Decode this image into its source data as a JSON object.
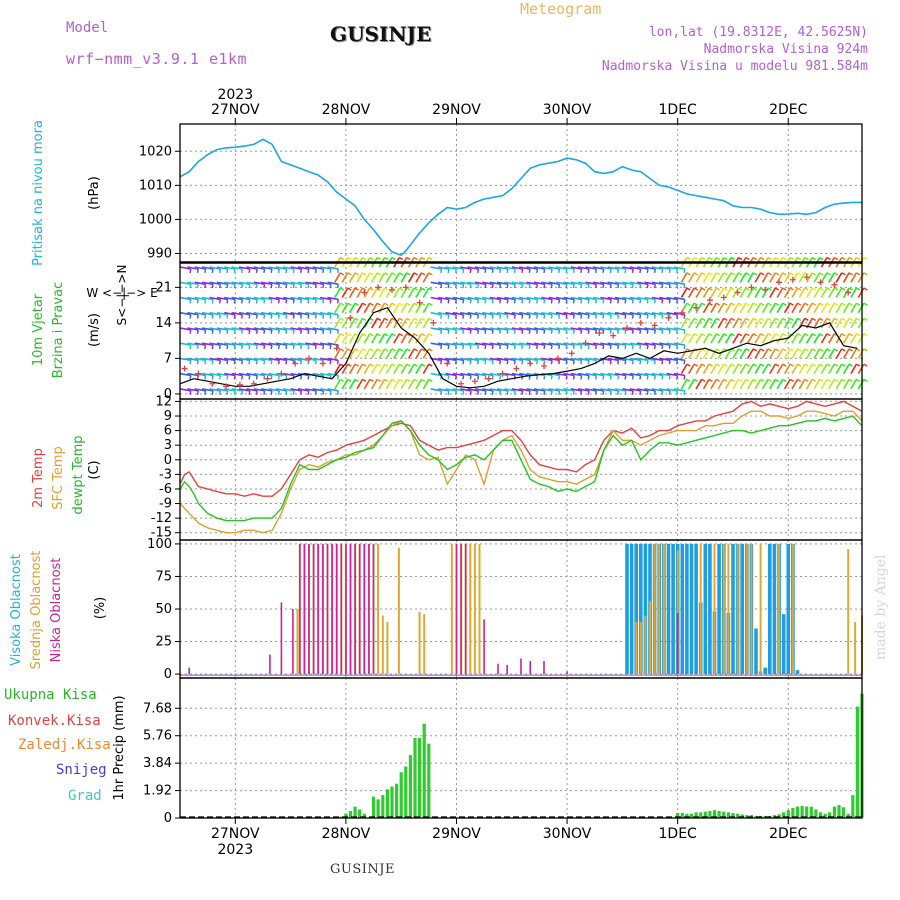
{
  "header": {
    "meteogram_title": "Meteogram",
    "station": "GUSINJE",
    "model_label": "Model",
    "model_value": "wrf−nmm_v3.9.1  e1km",
    "lonlat": "lon,lat (19.8312E, 42.5625N)",
    "elevation": "Nadmorska Visina 924m",
    "elevation_model": "Nadmorska Visina u modelu 981.584m",
    "made_by": "made by Angel",
    "footer_station": "GUSINJE"
  },
  "time_axis": {
    "year": "2023",
    "day_labels": [
      "27NOV",
      "28NOV",
      "29NOV",
      "30NOV",
      "1DEC",
      "2DEC"
    ],
    "day_centers_h": [
      12,
      36,
      60,
      84,
      108,
      132
    ],
    "day_gridlines_h": [
      12,
      36,
      60,
      84,
      108,
      132
    ],
    "range_h": [
      0,
      148
    ]
  },
  "colors": {
    "pressure": "#1aa7e6",
    "temp2m": "#e84040",
    "sfc_temp": "#e0a030",
    "dewpoint": "#22c622",
    "high_cloud": "#1e9ee0",
    "mid_cloud": "#e0a830",
    "low_cloud": "#cc2299",
    "precip": "#2ecc2e",
    "label_cyan": "#1eb4e8",
    "label_green": "#28b828",
    "label_red": "#e84040",
    "label_orange": "#f08a30",
    "label_blue": "#4040e0",
    "label_teal": "#40c8c0",
    "label_purple": "#b35fd6"
  },
  "chart_data": [
    {
      "type": "line",
      "name": "pressure",
      "ylabel": "(hPa)",
      "side_label": "Pritisak na nivou mora",
      "yticks": [
        990,
        1000,
        1010,
        1020
      ],
      "ylim": [
        987.5,
        1028
      ],
      "x": [
        0,
        2,
        4,
        6,
        8,
        10,
        12,
        14,
        16,
        18,
        20,
        21,
        22,
        24,
        26,
        28,
        30,
        32,
        34,
        36,
        38,
        40,
        42,
        44,
        46,
        48,
        49,
        50,
        52,
        54,
        56,
        58,
        60,
        62,
        64,
        66,
        68,
        70,
        72,
        74,
        76,
        78,
        80,
        82,
        84,
        86,
        88,
        90,
        92,
        94,
        96,
        98,
        100,
        102,
        104,
        106,
        108,
        110,
        112,
        114,
        116,
        118,
        120,
        122,
        124,
        126,
        128,
        130,
        132,
        134,
        136,
        138,
        140,
        142,
        144,
        146,
        148
      ],
      "y": [
        1012.5,
        1014,
        1017,
        1019,
        1020.5,
        1021,
        1021.2,
        1021.5,
        1022,
        1023.5,
        1022,
        1019.5,
        1017,
        1016,
        1015,
        1014,
        1013,
        1011,
        1008,
        1006,
        1004,
        1000,
        997,
        993.5,
        990.5,
        989.5,
        990.8,
        992.5,
        996,
        999,
        1001.5,
        1003.5,
        1003,
        1003.5,
        1005,
        1006,
        1006.5,
        1007,
        1009,
        1012,
        1015,
        1016,
        1016.5,
        1017,
        1018,
        1017.5,
        1016.5,
        1014,
        1013.5,
        1014,
        1015.5,
        1014.5,
        1014,
        1012,
        1010,
        1009.5,
        1008.5,
        1007.5,
        1007,
        1006.5,
        1006,
        1005.5,
        1004,
        1003.5,
        1003.5,
        1003,
        1002,
        1001.5,
        1001.6,
        1001.8,
        1001.5,
        1002,
        1003.5,
        1004.5,
        1004.8,
        1005,
        1005
      ]
    },
    {
      "type": "scatter",
      "name": "wind",
      "ylabel": "(m/s)",
      "side_label_1": "10m Vjetar",
      "side_label_2": "Brzina i Pravac",
      "compass_label": "W  <−|−>  E",
      "compass_label_vert": "S<−|−>N",
      "yticks": [
        0,
        7,
        14,
        21
      ],
      "ylim": [
        -1,
        26
      ],
      "speed_series": {
        "x": [
          0,
          3,
          6,
          9,
          12,
          15,
          18,
          21,
          24,
          27,
          30,
          33,
          36,
          39,
          42,
          45,
          48,
          51,
          54,
          57,
          60,
          63,
          66,
          69,
          72,
          75,
          78,
          81,
          84,
          87,
          90,
          93,
          96,
          99,
          102,
          105,
          108,
          111,
          114,
          117,
          120,
          123,
          126,
          129,
          132,
          135,
          138,
          141,
          144,
          147
        ],
        "y": [
          2,
          3,
          2.5,
          2,
          1.5,
          1.5,
          2,
          2.5,
          3,
          4,
          3.5,
          3,
          6,
          12,
          16,
          17,
          13,
          11,
          8,
          3,
          1.5,
          1.2,
          1.5,
          2.5,
          3,
          3.5,
          3.8,
          4,
          4.5,
          5,
          6,
          7.5,
          7,
          8,
          7,
          8.5,
          8,
          8.5,
          9,
          8,
          9,
          10,
          9.5,
          10.5,
          11,
          13.5,
          13,
          14,
          9.5,
          9
        ]
      },
      "gust_series": {
        "x": [
          1,
          4,
          7,
          10,
          13,
          16,
          19,
          22,
          25,
          28,
          31,
          34,
          37,
          40,
          43,
          46,
          49,
          52,
          55,
          58,
          61,
          64,
          67,
          70,
          73,
          76,
          79,
          82,
          85,
          88,
          91,
          94,
          97,
          100,
          103,
          106,
          109,
          112,
          115,
          118,
          121,
          124,
          127,
          130,
          133,
          136,
          139,
          142,
          145
        ],
        "y": [
          5,
          4,
          2,
          1.5,
          1.8,
          2,
          3,
          4,
          6,
          7,
          6,
          9,
          15,
          20,
          21,
          20.5,
          21,
          18,
          14,
          6,
          2,
          2.5,
          3,
          4,
          5,
          6,
          5.5,
          7,
          8,
          10,
          12,
          11.5,
          13,
          14,
          13.5,
          15,
          16,
          17,
          18.5,
          19,
          20,
          21,
          20.5,
          22,
          22.5,
          23,
          22,
          21.5,
          20
        ]
      },
      "barb_rows_ms": [
        1,
        4,
        7,
        10,
        13,
        16,
        19,
        22,
        25
      ],
      "barb_columns_h": [
        0,
        1.6,
        3.2,
        4.8,
        6.4,
        8,
        9.6,
        11.2,
        12.8,
        14.4,
        16,
        17.6,
        19.2,
        20.8,
        22.4,
        24,
        25.6,
        27.2,
        28.8,
        30.4,
        32,
        33.6,
        35.2,
        36.8,
        38.4,
        40,
        41.6,
        43.2,
        44.8,
        46.4,
        48,
        49.6,
        51.2,
        52.8,
        54.4,
        56,
        57.6,
        59.2,
        60.8,
        62.4,
        64,
        65.6,
        67.2,
        68.8,
        70.4,
        72,
        73.6,
        75.2,
        76.8,
        78.4,
        80,
        81.6,
        83.2,
        84.8,
        86.4,
        88,
        89.6,
        91.2,
        92.8,
        94.4,
        96,
        97.6,
        99.2,
        100.8,
        102.4,
        104,
        105.6,
        107.2,
        108.8,
        110.4,
        112,
        113.6,
        115.2,
        116.8,
        118.4,
        120,
        121.6,
        123.2,
        124.8,
        126.4,
        128,
        129.6,
        131.2,
        132.8,
        134.4,
        136,
        137.6,
        139.2,
        140.8,
        142.4,
        144,
        145.6,
        147.2
      ]
    },
    {
      "type": "line",
      "name": "temperature",
      "ylabel": "(C)",
      "side_label_1": "2m Temp",
      "side_label_2": "SFC Temp",
      "side_label_3": "dewpt Temp",
      "yticks": [
        -15,
        -12,
        -9,
        -6,
        -3,
        0,
        3,
        6,
        9,
        12
      ],
      "ylim": [
        -16.5,
        12.5
      ],
      "x": [
        0,
        1,
        2,
        3,
        4,
        6,
        8,
        10,
        12,
        14,
        16,
        18,
        20,
        22,
        24,
        26,
        28,
        30,
        32,
        34,
        36,
        38,
        40,
        42,
        44,
        46,
        48,
        50,
        52,
        54,
        56,
        58,
        60,
        62,
        64,
        66,
        68,
        70,
        72,
        74,
        76,
        78,
        80,
        82,
        84,
        86,
        88,
        90,
        92,
        94,
        96,
        98,
        100,
        102,
        104,
        106,
        108,
        110,
        112,
        114,
        116,
        118,
        120,
        122,
        124,
        126,
        128,
        130,
        132,
        134,
        136,
        138,
        140,
        142,
        144,
        146,
        148
      ],
      "series": [
        {
          "name": "2m Temp",
          "color_key": "temp2m",
          "values": [
            -5,
            -3,
            -2.5,
            -4,
            -5.5,
            -6,
            -6.5,
            -7,
            -7,
            -7.5,
            -7,
            -7.5,
            -7.5,
            -6,
            -3,
            0,
            1,
            0.5,
            1.5,
            2,
            3,
            3.5,
            4,
            5,
            6,
            7,
            7.5,
            7,
            4,
            3,
            2,
            2.5,
            2.5,
            3,
            3.5,
            4,
            5,
            6,
            6,
            4,
            1,
            -1,
            -1.5,
            -2,
            -2,
            -2.5,
            -1,
            0,
            4,
            6,
            5.5,
            6.5,
            4.5,
            5,
            6,
            6,
            7,
            7.5,
            8,
            8,
            9,
            9.5,
            10,
            11.5,
            12,
            11,
            11.5,
            11,
            10.5,
            11,
            12,
            11.5,
            11,
            11.5,
            12,
            11,
            10
          ]
        },
        {
          "name": "SFC Temp",
          "color_key": "sfc_temp",
          "values": [
            -9,
            -10,
            -11,
            -12,
            -13,
            -14,
            -14.5,
            -15,
            -15,
            -14.5,
            -14.5,
            -15,
            -14.5,
            -11,
            -6,
            -2,
            -1,
            -1.5,
            -0.5,
            0,
            1,
            1,
            2,
            3,
            5,
            7,
            8,
            6,
            1,
            0,
            0.5,
            -5,
            -2,
            1,
            0,
            -5,
            2,
            4,
            5,
            2,
            -2,
            -3.5,
            -4,
            -4.5,
            -4.5,
            -5,
            -4,
            -3,
            2,
            6,
            4,
            4,
            3,
            4,
            5,
            5.5,
            6,
            6,
            6,
            7,
            7,
            7.5,
            7.5,
            9,
            10,
            10,
            9,
            9,
            8.5,
            9,
            10,
            10,
            9.5,
            9,
            10,
            10,
            8
          ]
        },
        {
          "name": "dewpt Temp",
          "color_key": "dewpoint",
          "values": [
            -6,
            -4.5,
            -5.5,
            -7,
            -9,
            -11,
            -12,
            -12.5,
            -12.5,
            -12.5,
            -12,
            -12,
            -12,
            -10,
            -5,
            -1,
            -2,
            -2,
            -1,
            0,
            0.5,
            1.5,
            2,
            2.5,
            5,
            7.5,
            8,
            6,
            3,
            1,
            0,
            -2,
            -1,
            0.5,
            1,
            0,
            2,
            4,
            4,
            0,
            -4,
            -5,
            -5.5,
            -6.5,
            -6,
            -6.5,
            -5.5,
            -4.5,
            2,
            5,
            3,
            4,
            0,
            2,
            3.5,
            3.5,
            3,
            3.5,
            4,
            4.5,
            5,
            5.5,
            6,
            6,
            5.5,
            6,
            6.5,
            7,
            7,
            7.5,
            8,
            8,
            8.5,
            8,
            8.5,
            9,
            7
          ]
        }
      ]
    },
    {
      "type": "bar",
      "name": "clouds",
      "ylabel": "(%)",
      "side_label_1": "Visoka Oblacnost",
      "side_label_2": "Srednja Oblacnost",
      "side_label_3": "Niska Oblacnost",
      "yticks": [
        0,
        25,
        50,
        75,
        100
      ],
      "ylim": [
        -3,
        103
      ],
      "high": {
        "x": [
          97,
          98,
          99,
          100,
          101,
          102,
          103,
          104,
          105,
          106,
          107,
          108,
          109,
          110,
          111,
          112,
          113,
          114,
          115,
          116,
          117,
          118,
          119,
          120,
          121,
          122,
          123,
          124,
          125,
          126,
          127,
          128,
          129,
          130,
          131,
          132,
          133,
          134
        ],
        "y": [
          100,
          100,
          100,
          100,
          100,
          100,
          100,
          100,
          100,
          100,
          100,
          100,
          100,
          100,
          100,
          100,
          55,
          100,
          100,
          48,
          100,
          100,
          47,
          100,
          100,
          100,
          100,
          100,
          35,
          2,
          5,
          100,
          100,
          100,
          46,
          100,
          100,
          3
        ]
      },
      "mid": {
        "x": [
          25.5,
          26,
          27,
          28,
          29,
          30,
          31,
          32,
          33,
          34,
          35,
          36,
          37,
          38,
          39,
          40,
          41,
          42,
          43,
          44,
          45,
          47.5,
          52,
          53,
          59,
          60,
          61,
          62,
          63,
          64,
          65,
          99,
          100,
          101,
          102,
          103,
          104,
          105,
          108,
          113,
          116,
          118,
          119,
          121,
          123,
          124,
          126,
          130,
          133,
          145,
          146.5,
          148
        ],
        "y": [
          50,
          100,
          100,
          100,
          100,
          100,
          100,
          100,
          100,
          100,
          100,
          100,
          100,
          100,
          100,
          100,
          100,
          100,
          100,
          45,
          40,
          97,
          48,
          46,
          100,
          100,
          100,
          100,
          100,
          100,
          100,
          40,
          40,
          45,
          56,
          100,
          100,
          100,
          95,
          100,
          100,
          100,
          100,
          100,
          100,
          100,
          100,
          100,
          100,
          96,
          40,
          45
        ]
      },
      "low": {
        "x": [
          2,
          19.5,
          22,
          24.5,
          26,
          27,
          28,
          29,
          30,
          31,
          32,
          33,
          34,
          35,
          36,
          37,
          38,
          39,
          40,
          41,
          42,
          60,
          61,
          62,
          66,
          69,
          71,
          74,
          76,
          79,
          84,
          108
        ],
        "y": [
          5,
          15,
          55,
          50,
          100,
          100,
          100,
          100,
          100,
          100,
          100,
          100,
          100,
          100,
          100,
          100,
          100,
          100,
          100,
          100,
          100,
          100,
          100,
          100,
          42,
          8,
          7,
          12,
          10,
          10,
          2,
          47
        ]
      }
    },
    {
      "type": "bar",
      "name": "precipitation",
      "ylabel": "1hr Precip (mm)",
      "legend": [
        "Ukupna Kisa",
        "Konvek.Kisa",
        "Zaledj.Kisa",
        "Snijeg",
        "Grad"
      ],
      "yticks": [
        0,
        1.92,
        3.84,
        5.76,
        7.68
      ],
      "ylim": [
        0,
        9.8
      ],
      "x": [
        35,
        36,
        37,
        38,
        39,
        40,
        42,
        43,
        44,
        45,
        46,
        47,
        48,
        49,
        50,
        51,
        52,
        53,
        54,
        108,
        109,
        110,
        111,
        112,
        113,
        114,
        115,
        116,
        117,
        118,
        119,
        120,
        121,
        122,
        123,
        124,
        125,
        126,
        127,
        128,
        129,
        130,
        131,
        132,
        133,
        134,
        135,
        136,
        137,
        138,
        139,
        140,
        141,
        142,
        143,
        144,
        145,
        146,
        147,
        148
      ],
      "y": [
        0.1,
        0.3,
        0.5,
        0.8,
        0.6,
        0.3,
        1.5,
        1.3,
        1.6,
        2.0,
        2.2,
        2.4,
        3.2,
        3.6,
        4.4,
        5.6,
        5.6,
        6.6,
        5.2,
        0.35,
        0.35,
        0.3,
        0.3,
        0.4,
        0.4,
        0.45,
        0.5,
        0.55,
        0.5,
        0.45,
        0.4,
        0.35,
        0.3,
        0.25,
        0.2,
        0.2,
        0.15,
        0.15,
        0.15,
        0.15,
        0.2,
        0.25,
        0.4,
        0.55,
        0.7,
        0.8,
        0.85,
        0.8,
        0.8,
        0.6,
        0.4,
        0.3,
        0.4,
        0.8,
        0.9,
        0.75,
        0.3,
        1.6,
        7.8,
        8.7
      ]
    }
  ]
}
